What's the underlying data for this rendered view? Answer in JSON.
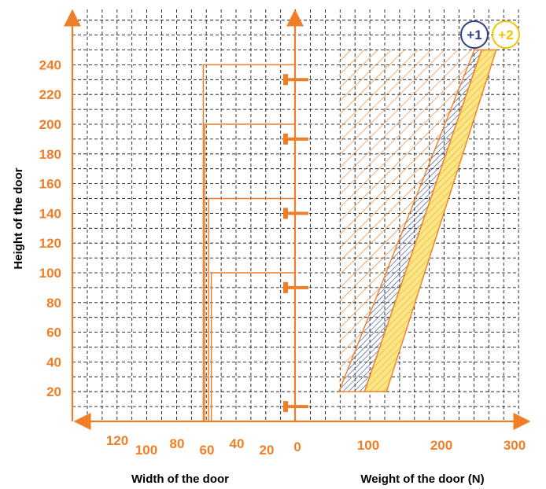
{
  "chart_data": {
    "type": "area",
    "ylabel": "Height of the door",
    "xlabel_left": "Width of the door",
    "xlabel_right": "Weight of the door (N)",
    "y_ticks": [
      20,
      40,
      60,
      80,
      100,
      120,
      140,
      160,
      180,
      200,
      220,
      240
    ],
    "ylim": [
      0,
      250
    ],
    "x_left_ticks": [
      {
        "label": "0",
        "value": 0
      },
      {
        "label": "20",
        "value": 20
      },
      {
        "label": "40",
        "value": 40
      },
      {
        "label": "60",
        "value": 60
      },
      {
        "label": "80",
        "value": 80
      },
      {
        "label": "100",
        "value": 100
      },
      {
        "label": "120",
        "value": 120
      }
    ],
    "x_right_ticks": [
      {
        "label": "100",
        "value": 100
      },
      {
        "label": "200",
        "value": 200
      },
      {
        "label": "300",
        "value": 300
      }
    ],
    "spring_markers_height": [
      10,
      90,
      140,
      190,
      230
    ],
    "width_steps": [
      {
        "width": 69,
        "height": 240
      },
      {
        "width": 68,
        "height": 200
      },
      {
        "width": 65,
        "height": 150
      },
      {
        "width": 63,
        "height": 100
      }
    ],
    "series": [
      {
        "name": "+1",
        "color": "#2e3f86",
        "lower": [
          [
            95,
            20
          ],
          [
            255,
            250
          ]
        ],
        "upper": [
          [
            60,
            20
          ],
          [
            245,
            250
          ]
        ]
      },
      {
        "name": "+2",
        "color": "#f5c400",
        "lower": [
          [
            125,
            20
          ],
          [
            275,
            250
          ]
        ],
        "upper": [
          [
            95,
            20
          ],
          [
            255,
            250
          ]
        ]
      }
    ],
    "base_region": {
      "x_from": 60,
      "height_top": 250
    },
    "legend": [
      "+1",
      "+2"
    ],
    "grid": true,
    "colors": {
      "accent": "#f07e26",
      "blue": "#2e3f86",
      "yellow": "#f5c400",
      "grid": "#000000"
    }
  }
}
